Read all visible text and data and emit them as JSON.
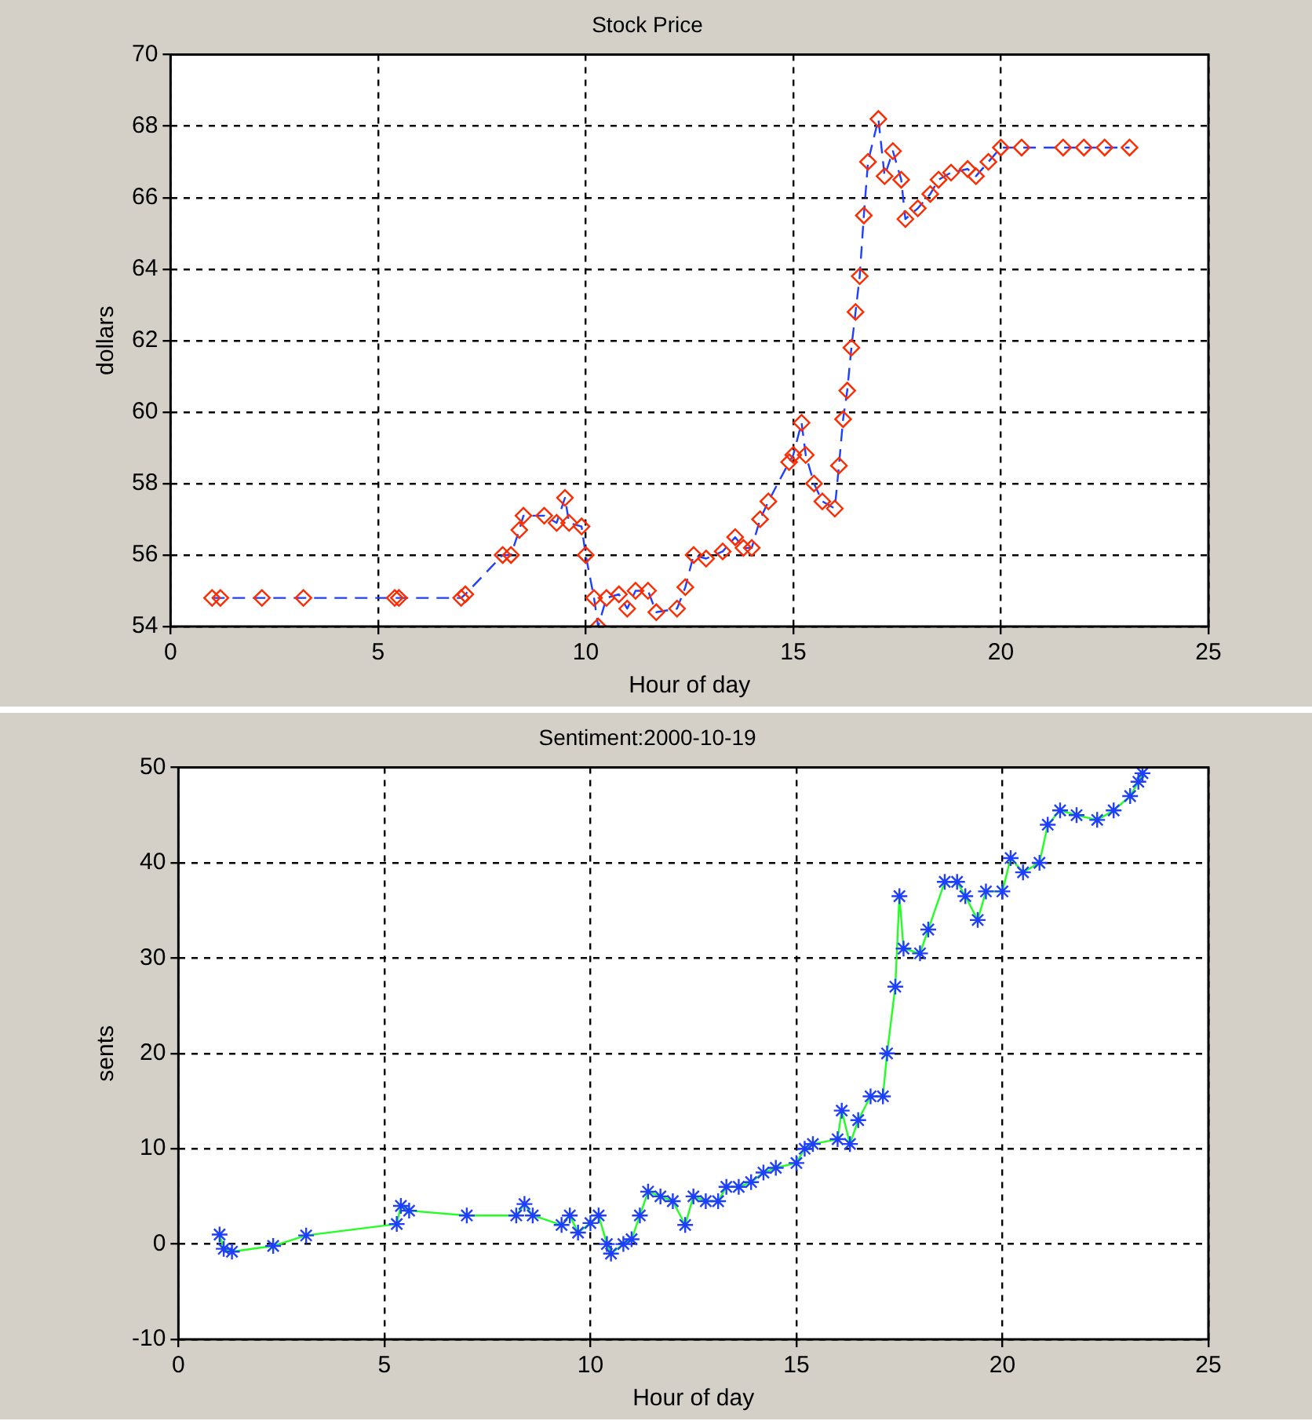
{
  "chart_data": [
    {
      "type": "line",
      "title": "Stock Price",
      "xlabel": "Hour of day",
      "ylabel": "dollars",
      "xlim": [
        0,
        25
      ],
      "xticks": [
        0,
        5,
        10,
        15,
        20,
        25
      ],
      "ylim": [
        54,
        70
      ],
      "yticks": [
        54,
        56,
        58,
        60,
        62,
        64,
        66,
        68,
        70
      ],
      "grid": true,
      "marker": "diamond",
      "line_style": "dashed",
      "x": [
        1.0,
        1.2,
        2.2,
        3.2,
        5.4,
        5.5,
        7.0,
        7.1,
        8.0,
        8.2,
        8.4,
        8.5,
        9.0,
        9.3,
        9.5,
        9.6,
        9.9,
        10.0,
        10.2,
        10.3,
        10.5,
        10.8,
        11.0,
        11.2,
        11.5,
        11.7,
        12.2,
        12.4,
        12.6,
        12.9,
        13.3,
        13.6,
        13.8,
        14.0,
        14.2,
        14.4,
        14.9,
        15.0,
        15.2,
        15.3,
        15.5,
        15.7,
        16.0,
        16.1,
        16.2,
        16.3,
        16.4,
        16.5,
        16.6,
        16.7,
        16.8,
        17.05,
        17.2,
        17.4,
        17.6,
        17.7,
        18.0,
        18.3,
        18.5,
        18.8,
        19.2,
        19.4,
        19.7,
        20.0,
        20.5,
        21.5,
        22.0,
        22.5,
        23.1
      ],
      "series": [
        {
          "color": "#ff2a00",
          "values": [
            54.8,
            54.8,
            54.8,
            54.8,
            54.8,
            54.8,
            54.8,
            54.9,
            56.0,
            56.0,
            56.7,
            57.1,
            57.1,
            56.9,
            57.6,
            56.9,
            56.8,
            56.0,
            54.8,
            54.0,
            54.8,
            54.9,
            54.5,
            55.0,
            55.0,
            54.4,
            54.5,
            55.1,
            56.0,
            55.9,
            56.1,
            56.5,
            56.2,
            56.2,
            57.0,
            57.5,
            58.6,
            58.8,
            59.7,
            58.8,
            58.0,
            57.5,
            57.3,
            58.5,
            59.8,
            60.6,
            61.8,
            62.8,
            63.8,
            65.5,
            67.0,
            68.2,
            66.6,
            67.3,
            66.5,
            65.4,
            65.7,
            66.1,
            66.5,
            66.7,
            66.8,
            66.6,
            67.0,
            67.4,
            67.4,
            67.4,
            67.4,
            67.4,
            67.4
          ]
        }
      ]
    },
    {
      "type": "line",
      "title": "Sentiment:2000-10-19",
      "xlabel": "Hour of day",
      "ylabel": "sents",
      "xlim": [
        0,
        25
      ],
      "xticks": [
        0,
        5,
        10,
        15,
        20,
        25
      ],
      "ylim": [
        -10,
        50
      ],
      "yticks": [
        -10,
        0,
        10,
        20,
        30,
        40,
        50
      ],
      "grid": true,
      "marker": "cross",
      "line_style": "solid",
      "x": [
        1.0,
        1.1,
        1.3,
        2.3,
        3.1,
        5.3,
        5.4,
        5.6,
        7.0,
        8.2,
        8.4,
        8.6,
        9.3,
        9.5,
        9.7,
        10.0,
        10.2,
        10.4,
        10.5,
        10.8,
        11.0,
        11.2,
        11.4,
        11.7,
        12.0,
        12.3,
        12.5,
        12.8,
        13.1,
        13.3,
        13.6,
        13.9,
        14.2,
        14.5,
        15.0,
        15.2,
        15.4,
        16.0,
        16.1,
        16.3,
        16.5,
        16.8,
        17.1,
        17.2,
        17.4,
        17.5,
        17.6,
        18.0,
        18.2,
        18.6,
        18.9,
        19.1,
        19.4,
        19.6,
        20.0,
        20.2,
        20.5,
        20.9,
        21.1,
        21.4,
        21.8,
        22.3,
        22.7,
        23.1,
        23.3,
        23.4
      ],
      "series": [
        {
          "color": "#1f3fff",
          "values": [
            1.0,
            -0.5,
            -0.8,
            -0.2,
            0.9,
            2.1,
            4.0,
            3.5,
            3.0,
            3.0,
            4.2,
            3.0,
            2.0,
            3.0,
            1.2,
            2.2,
            3.0,
            0,
            -1.0,
            0,
            0.5,
            3.0,
            5.5,
            5.0,
            4.5,
            2.0,
            5.0,
            4.5,
            4.5,
            6.0,
            6.0,
            6.5,
            7.5,
            8.0,
            8.5,
            10.0,
            10.5,
            11.0,
            14.0,
            10.5,
            13.0,
            15.5,
            15.5,
            20.0,
            27.0,
            36.5,
            31.0,
            30.5,
            33.0,
            38.0,
            38.0,
            36.5,
            34.0,
            37.0,
            37.0,
            40.5,
            39.0,
            40.0,
            44.0,
            45.5,
            45.0,
            44.5,
            45.5,
            47.0,
            48.5,
            49.4
          ]
        }
      ]
    }
  ]
}
